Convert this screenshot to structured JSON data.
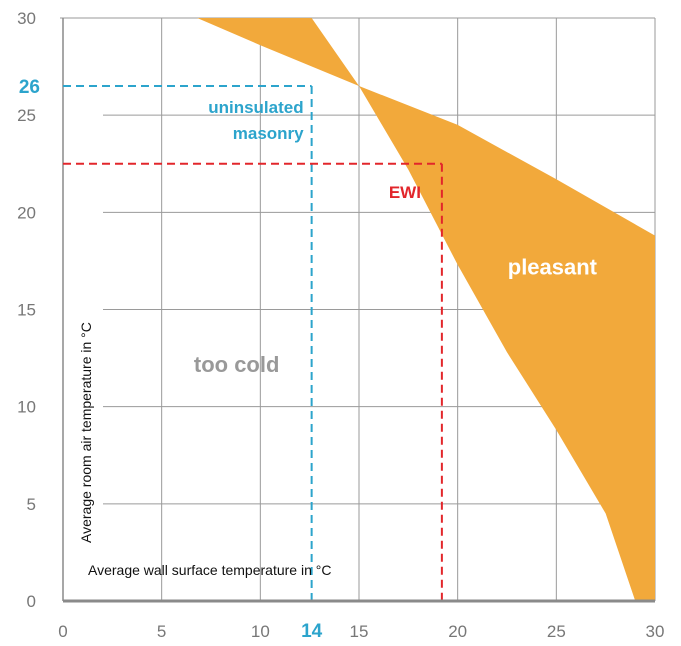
{
  "chart_data": {
    "type": "area",
    "xlabel": "Average wall surface temperature in °C",
    "ylabel": "Average room air temperature in °C",
    "xlim": [
      0,
      30
    ],
    "ylim": [
      0,
      30
    ],
    "x_ticks": [
      "0",
      "5",
      "10",
      "15",
      "20",
      "25",
      "30"
    ],
    "y_ticks": [
      "0",
      "5",
      "10",
      "15",
      "20",
      "25",
      "30"
    ],
    "grid": true,
    "band": {
      "name": "pleasant",
      "lower": {
        "x": [
          12.6,
          15,
          17.5,
          20,
          22.5,
          25,
          27.5,
          29.0
        ],
        "y": [
          30,
          26.5,
          22.2,
          17.3,
          12.8,
          8.8,
          4.5,
          0
        ]
      },
      "upper": {
        "x": [
          6.8,
          10,
          15,
          20,
          25,
          30
        ],
        "y": [
          30,
          28.6,
          26.5,
          24.5,
          21.7,
          18.8
        ]
      },
      "color": "#f2a93b"
    },
    "regions": [
      {
        "label": "pleasant",
        "x": 24.8,
        "y": 17.2,
        "color": "#ffffff"
      },
      {
        "label": "too cold",
        "x": 8.8,
        "y": 12.2,
        "color": "#999999"
      }
    ],
    "reference_lines": [
      {
        "name": "uninsulated masonry",
        "x": 12.6,
        "y": 26.5,
        "color": "#2ca4cc",
        "label_lines": [
          "uninsulated",
          "masonry"
        ],
        "x_marker": "14",
        "y_marker": "26"
      },
      {
        "name": "EWI",
        "x": 19.2,
        "y": 22.5,
        "color": "#e2262b",
        "label_lines": [
          "EWI"
        ]
      }
    ]
  }
}
